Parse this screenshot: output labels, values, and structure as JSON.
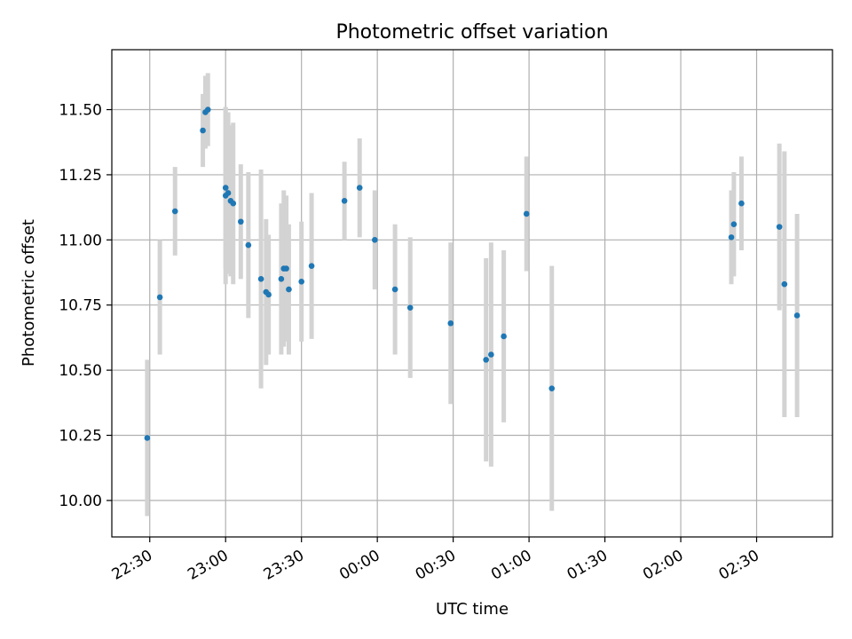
{
  "chart_data": {
    "type": "scatter",
    "title": "Photometric offset variation",
    "xlabel": "UTC time",
    "ylabel": "Photometric offset",
    "grid": true,
    "x_unit": "UTC",
    "xlim": [
      "22:15",
      "03:00"
    ],
    "ylim": [
      9.86,
      11.73
    ],
    "xticks": [
      "22:30",
      "23:00",
      "23:30",
      "00:00",
      "00:30",
      "01:00",
      "01:30",
      "02:00",
      "02:30"
    ],
    "yticks": [
      "10.00",
      "10.25",
      "10.50",
      "10.75",
      "11.00",
      "11.25",
      "11.50"
    ],
    "colors": {
      "points": "#1f77b4",
      "errorbars": "#d3d3d3",
      "grid": "#b0b0b0"
    },
    "series": [
      {
        "points": [
          {
            "x": "22:29",
            "y": 10.24,
            "err": 0.3
          },
          {
            "x": "22:34",
            "y": 10.78,
            "err": 0.22
          },
          {
            "x": "22:40",
            "y": 11.11,
            "err": 0.17
          },
          {
            "x": "22:51",
            "y": 11.42,
            "err": 0.14
          },
          {
            "x": "22:52",
            "y": 11.49,
            "err": 0.14
          },
          {
            "x": "22:53",
            "y": 11.5,
            "err": 0.14
          },
          {
            "x": "23:00",
            "y": 11.17,
            "err": 0.34
          },
          {
            "x": "23:00",
            "y": 11.2,
            "err": 0.31
          },
          {
            "x": "23:01",
            "y": 11.18,
            "err": 0.31
          },
          {
            "x": "23:02",
            "y": 11.15,
            "err": 0.29
          },
          {
            "x": "23:03",
            "y": 11.14,
            "err": 0.31
          },
          {
            "x": "23:06",
            "y": 11.07,
            "err": 0.22
          },
          {
            "x": "23:09",
            "y": 10.98,
            "err": 0.28
          },
          {
            "x": "23:14",
            "y": 10.85,
            "err": 0.42
          },
          {
            "x": "23:16",
            "y": 10.8,
            "err": 0.28
          },
          {
            "x": "23:17",
            "y": 10.79,
            "err": 0.23
          },
          {
            "x": "23:22",
            "y": 10.85,
            "err": 0.29
          },
          {
            "x": "23:23",
            "y": 10.89,
            "err": 0.3
          },
          {
            "x": "23:24",
            "y": 10.89,
            "err": 0.28
          },
          {
            "x": "23:25",
            "y": 10.81,
            "err": 0.25
          },
          {
            "x": "23:30",
            "y": 10.84,
            "err": 0.23
          },
          {
            "x": "23:34",
            "y": 10.9,
            "err": 0.28
          },
          {
            "x": "23:47",
            "y": 11.15,
            "err": 0.15
          },
          {
            "x": "23:53",
            "y": 11.2,
            "err": 0.19
          },
          {
            "x": "23:59",
            "y": 11.0,
            "err": 0.19
          },
          {
            "x": "00:07",
            "y": 10.81,
            "err": 0.25
          },
          {
            "x": "00:13",
            "y": 10.74,
            "err": 0.27
          },
          {
            "x": "00:29",
            "y": 10.68,
            "err": 0.31
          },
          {
            "x": "00:43",
            "y": 10.54,
            "err": 0.39
          },
          {
            "x": "00:45",
            "y": 10.56,
            "err": 0.43
          },
          {
            "x": "00:50",
            "y": 10.63,
            "err": 0.33
          },
          {
            "x": "00:59",
            "y": 11.1,
            "err": 0.22
          },
          {
            "x": "01:09",
            "y": 10.43,
            "err": 0.47
          },
          {
            "x": "02:20",
            "y": 11.01,
            "err": 0.18
          },
          {
            "x": "02:21",
            "y": 11.06,
            "err": 0.2
          },
          {
            "x": "02:24",
            "y": 11.14,
            "err": 0.18
          },
          {
            "x": "02:39",
            "y": 11.05,
            "err": 0.32
          },
          {
            "x": "02:41",
            "y": 10.83,
            "err": 0.51
          },
          {
            "x": "02:46",
            "y": 10.71,
            "err": 0.39
          }
        ]
      }
    ]
  }
}
